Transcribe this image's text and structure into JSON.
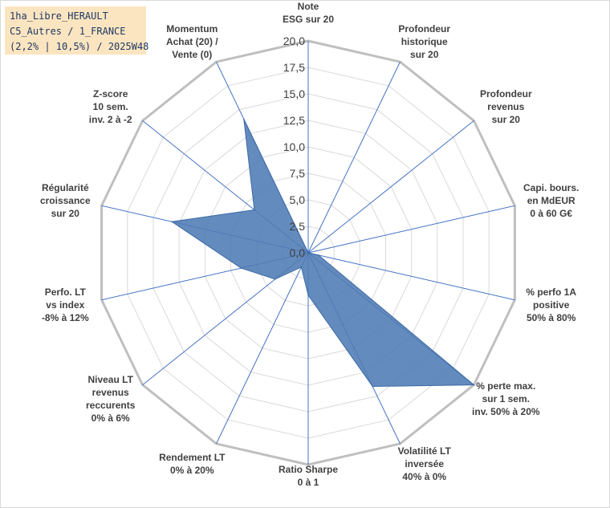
{
  "info_box": {
    "line1": "1ha_Libre_HERAULT",
    "line2": "C5_Autres / 1_FRANCE",
    "line3": "(2,2% | 10,5%) / 2025W48"
  },
  "colors": {
    "fill": "#4f7bb4",
    "spoke": "#4472c4",
    "grid": "#d9d9d9",
    "outer_ring": "#bfbfbf"
  },
  "chart_data": {
    "type": "radar",
    "title": "",
    "rlim": [
      0,
      20
    ],
    "ticks": [
      "0,0",
      "2,5",
      "5,0",
      "7,5",
      "10,0",
      "12,5",
      "15,0",
      "17,5",
      "20,0"
    ],
    "grid": true,
    "legend": "none",
    "categories": [
      [
        "Note",
        "ESG sur 20"
      ],
      [
        "Profondeur",
        "historique",
        "sur 20"
      ],
      [
        "Profondeur",
        "revenus",
        "sur 20"
      ],
      [
        "Capi. bours.",
        "en MdEUR",
        "0 à 60 G€"
      ],
      [
        "% perfo 1A",
        "positive",
        "50% à 80%"
      ],
      [
        "% perte max.",
        "sur 1 sem.",
        "inv. 50% à 20%"
      ],
      [
        "Volatilité LT",
        "inversée",
        "40% à 0%"
      ],
      [
        "Ratio Sharpe",
        "0 à 1"
      ],
      [
        "Rendement LT",
        "0% à 20%"
      ],
      [
        "Niveau LT",
        "revenus",
        "reccurents",
        "0% à 6%"
      ],
      [
        "Perfo. LT",
        "vs index",
        "-8% à 12%"
      ],
      [
        "Régularité",
        "croissance",
        "sur 20"
      ],
      [
        "Z-score",
        "10 sem.",
        "inv. 2 à -2"
      ],
      [
        "Momentum",
        "Achat (20) /",
        "Vente (0)"
      ]
    ],
    "series": [
      {
        "values": [
          0,
          0,
          0,
          0,
          1.0,
          20.0,
          14.0,
          4.0,
          1.5,
          4.0,
          6.5,
          13.2,
          6.5,
          14.0
        ]
      }
    ]
  }
}
